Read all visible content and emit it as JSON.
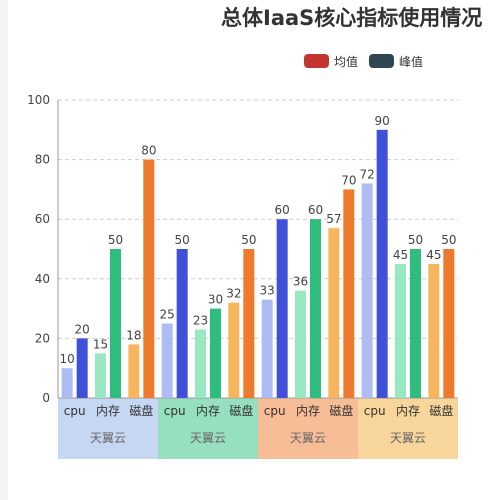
{
  "chart_data": {
    "type": "bar",
    "title": "总体IaaS核心指标使用情况",
    "legend": [
      {
        "name": "均值",
        "color": "#c23531"
      },
      {
        "name": "峰值",
        "color": "#2f4554"
      }
    ],
    "legend_position": "top-right",
    "ylim": [
      0,
      100
    ],
    "yticks": [
      0,
      20,
      40,
      60,
      80,
      100
    ],
    "grid": true,
    "groups": [
      {
        "label": "天翼云",
        "band_color": "#c6d7f4",
        "categories": [
          "cpu",
          "内存",
          "磁盘"
        ],
        "avg": [
          10,
          15,
          18
        ],
        "peak": [
          20,
          50,
          80
        ]
      },
      {
        "label": "天翼云",
        "band_color": "#96dfbf",
        "categories": [
          "cpu",
          "内存",
          "磁盘"
        ],
        "avg": [
          25,
          23,
          32
        ],
        "peak": [
          50,
          30,
          50
        ]
      },
      {
        "label": "天翼云",
        "band_color": "#f7bd97",
        "categories": [
          "cpu",
          "内存",
          "磁盘"
        ],
        "avg": [
          33,
          36,
          57
        ],
        "peak": [
          60,
          60,
          70
        ]
      },
      {
        "label": "天翼云",
        "band_color": "#f7d59b",
        "categories": [
          "cpu",
          "内存",
          "磁盘"
        ],
        "avg": [
          72,
          45,
          45
        ],
        "peak": [
          90,
          50,
          50
        ]
      }
    ],
    "category_colors": {
      "cpu": {
        "avg": "#aebcf4",
        "peak": "#4050d8"
      },
      "内存": {
        "avg": "#98e9c1",
        "peak": "#2ebd7d"
      },
      "磁盘": {
        "avg": "#f7b55e",
        "peak": "#ee7b2d"
      }
    }
  }
}
